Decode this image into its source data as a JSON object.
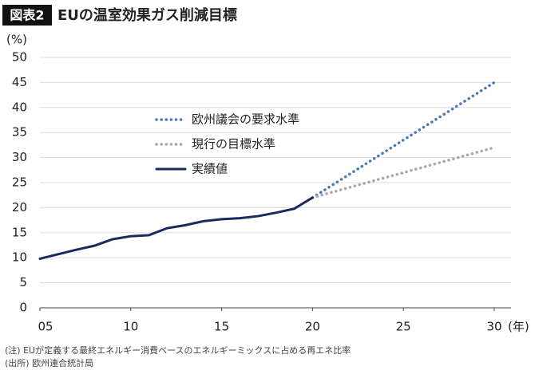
{
  "chart_data": {
    "type": "line",
    "badge": "図表2",
    "title": "EUの温室効果ガス削減目標",
    "y_unit": "(%)",
    "x_unit": "(年)",
    "note": "(注) EUが定義する最終エネルギー消費ベースのエネルギーミックスに占める再エネ比率",
    "source": "(出所) 欧州連合統計局",
    "xlim": [
      5,
      30
    ],
    "xticks": [
      {
        "value": 5,
        "label": "05"
      },
      10,
      15,
      20,
      25,
      30
    ],
    "ylim": [
      0,
      50
    ],
    "yticks": [
      0,
      5,
      10,
      15,
      20,
      25,
      30,
      35,
      40,
      45,
      50
    ],
    "grid": true,
    "series": [
      {
        "name": "欧州議会の要求水準",
        "color": "#4a78b5",
        "style": "dotted",
        "x": [
          20,
          30
        ],
        "values": [
          22,
          45
        ]
      },
      {
        "name": "現行の目標水準",
        "color": "#a6a6a6",
        "style": "dotted",
        "x": [
          20,
          30
        ],
        "values": [
          22,
          32
        ]
      },
      {
        "name": "実績値",
        "color": "#1a2a5c",
        "style": "solid",
        "x": [
          5,
          6,
          7,
          8,
          9,
          10,
          11,
          12,
          13,
          14,
          15,
          16,
          17,
          18,
          19,
          20
        ],
        "values": [
          9.8,
          10.7,
          11.6,
          12.4,
          13.7,
          14.3,
          14.5,
          15.9,
          16.5,
          17.3,
          17.7,
          17.9,
          18.3,
          19.0,
          19.8,
          22.0
        ]
      }
    ]
  }
}
